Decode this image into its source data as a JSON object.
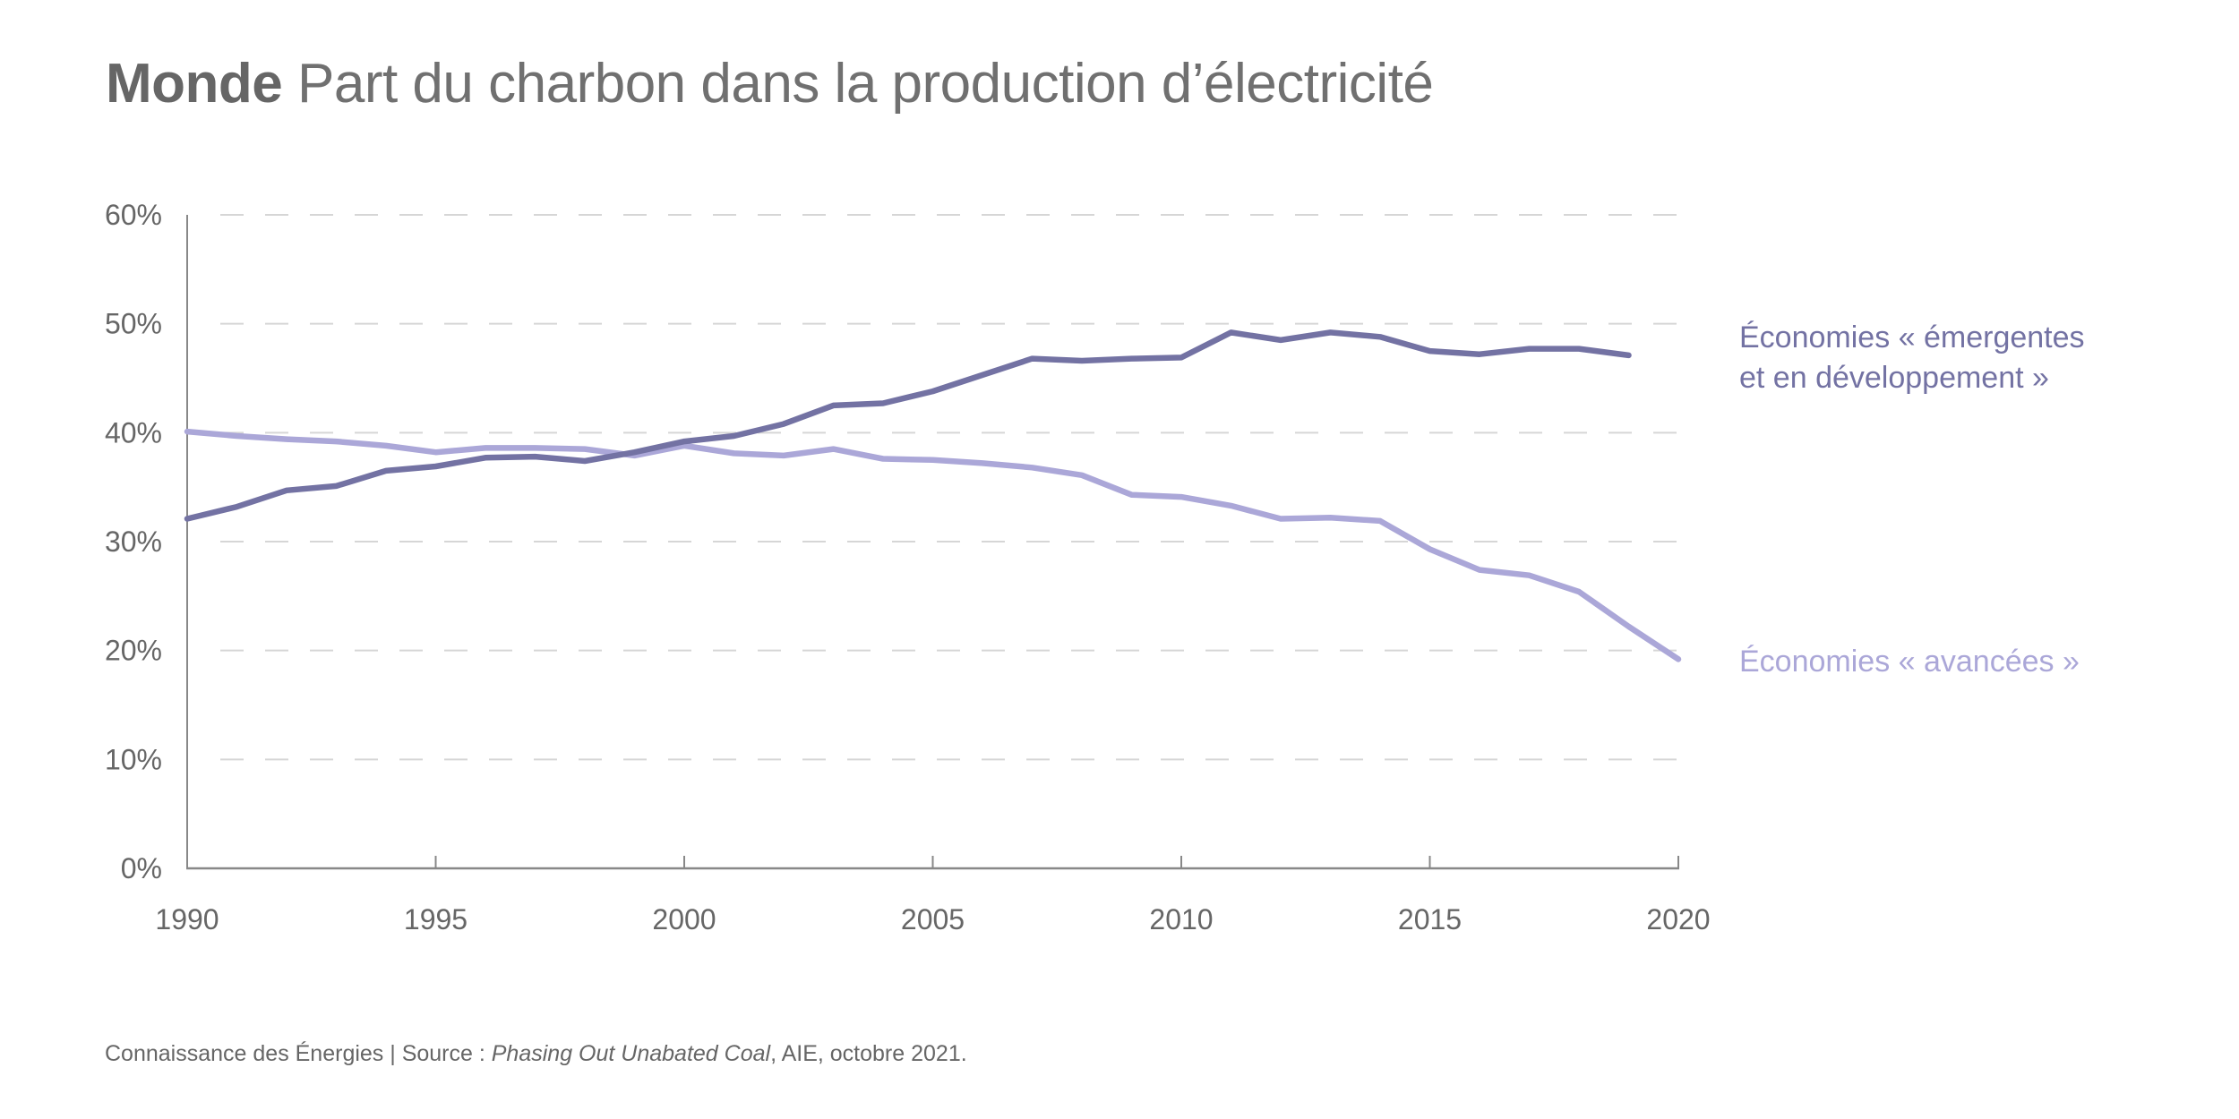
{
  "title": {
    "bold": "Monde",
    "rest": "Part du charbon dans la production d’électricité"
  },
  "footer": {
    "prefix": "Connaissance des Énergies | Source : ",
    "source_title": "Phasing Out Unabated Coal",
    "suffix": ", AIE, octobre 2021."
  },
  "chart_data": {
    "type": "line",
    "title": "Monde Part du charbon dans la production d’électricité",
    "xlabel": "",
    "ylabel": "",
    "xlim": [
      1990,
      2020
    ],
    "ylim": [
      0,
      60
    ],
    "grid": "horizontal-dashed",
    "x_ticks": [
      1990,
      1995,
      2000,
      2005,
      2010,
      2015,
      2020
    ],
    "x_tick_labels": [
      "1990",
      "1995",
      "2000",
      "2005",
      "2010",
      "2015",
      "2020"
    ],
    "y_ticks": [
      0,
      10,
      20,
      30,
      40,
      50,
      60
    ],
    "y_tick_labels": [
      "0%",
      "10%",
      "20%",
      "30%",
      "40%",
      "50%",
      "60%"
    ],
    "legend": "direct-labels-right",
    "series": [
      {
        "name": "Économies « émergentes et en développement »",
        "label_lines": [
          "Économies « émergentes",
          "et en développement »"
        ],
        "color": "#7372a3",
        "x": [
          1990,
          1991,
          1992,
          1993,
          1994,
          1995,
          1996,
          1997,
          1998,
          1999,
          2000,
          2001,
          2002,
          2003,
          2004,
          2005,
          2006,
          2007,
          2008,
          2009,
          2010,
          2011,
          2012,
          2013,
          2014,
          2015,
          2016,
          2017,
          2018,
          2019
        ],
        "values": [
          32.1,
          33.2,
          34.7,
          35.1,
          36.5,
          36.9,
          37.7,
          37.8,
          37.4,
          38.2,
          39.2,
          39.7,
          40.8,
          42.5,
          42.7,
          43.8,
          45.3,
          46.8,
          46.6,
          46.8,
          46.9,
          49.2,
          48.5,
          49.2,
          48.8,
          47.5,
          47.2,
          47.7,
          47.7,
          47.1
        ]
      },
      {
        "name": "Économies « avancées »",
        "label_lines": [
          "Économies « avancées  »"
        ],
        "color": "#aba7d8",
        "x": [
          1990,
          1991,
          1992,
          1993,
          1994,
          1995,
          1996,
          1997,
          1998,
          1999,
          2000,
          2001,
          2002,
          2003,
          2004,
          2005,
          2006,
          2007,
          2008,
          2009,
          2010,
          2011,
          2012,
          2013,
          2014,
          2015,
          2016,
          2017,
          2018,
          2019,
          2020
        ],
        "values": [
          40.1,
          39.7,
          39.4,
          39.2,
          38.8,
          38.2,
          38.6,
          38.6,
          38.5,
          37.9,
          38.8,
          38.1,
          37.9,
          38.5,
          37.6,
          37.5,
          37.2,
          36.8,
          36.1,
          34.3,
          34.1,
          33.3,
          32.1,
          32.2,
          31.9,
          29.3,
          27.4,
          26.9,
          25.4,
          22.2,
          19.2
        ]
      }
    ]
  }
}
